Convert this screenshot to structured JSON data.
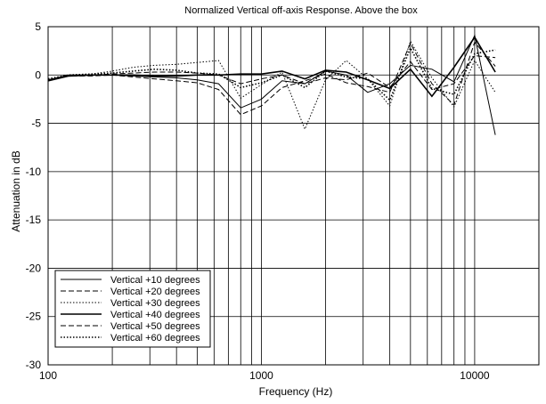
{
  "chart_data": {
    "type": "line",
    "title": "Normalized Vertical off-axis Response. Above the box",
    "xlabel": "Frequency (Hz)",
    "ylabel": "Attenuation in dB",
    "xscale": "log",
    "xlim": [
      100,
      20000
    ],
    "ylim": [
      -30,
      5
    ],
    "xticks": [
      100,
      1000,
      10000
    ],
    "xtick_labels": [
      "100",
      "1000",
      "10000"
    ],
    "yticks": [
      5,
      0,
      -5,
      -10,
      -15,
      -20,
      -25,
      -30
    ],
    "ytick_labels": [
      "5",
      "0",
      "-5",
      "-10",
      "-15",
      "-20",
      "-25",
      "-30"
    ],
    "grid": true,
    "legend_position": "bottom-left",
    "x": [
      100,
      125,
      160,
      200,
      250,
      315,
      400,
      500,
      630,
      800,
      1000,
      1250,
      1600,
      2000,
      2500,
      3150,
      4000,
      5000,
      6300,
      8000,
      10000,
      12500
    ],
    "series": [
      {
        "name": "Vertical +10 degrees",
        "style": "solid",
        "width": 1.0,
        "values": [
          -0.5,
          0.0,
          0.0,
          0.0,
          -0.1,
          -0.2,
          -0.3,
          -0.5,
          -0.9,
          -3.4,
          -2.5,
          -0.6,
          -0.9,
          0.4,
          0.0,
          -1.8,
          -0.9,
          1.0,
          0.6,
          -0.7,
          4.1,
          -6.2
        ]
      },
      {
        "name": "Vertical +20 degrees",
        "style": "dashed",
        "width": 1.0,
        "values": [
          -0.6,
          -0.1,
          -0.1,
          0.0,
          -0.2,
          -0.4,
          -0.6,
          -0.8,
          -1.5,
          -4.1,
          -3.2,
          -1.3,
          -0.6,
          0.1,
          -0.8,
          -1.2,
          -1.8,
          3.3,
          -0.9,
          -3.1,
          3.4,
          0.9
        ]
      },
      {
        "name": "Vertical +30 degrees",
        "style": "dotted",
        "width": 1.0,
        "values": [
          -0.5,
          0.0,
          0.1,
          0.4,
          0.8,
          1.0,
          1.1,
          1.3,
          1.5,
          -2.4,
          -1.0,
          0.3,
          -5.6,
          -0.5,
          1.5,
          -0.4,
          -3.2,
          3.5,
          -0.3,
          -3.3,
          1.5,
          -1.8
        ]
      },
      {
        "name": "Vertical +40 degrees",
        "style": "solid",
        "width": 1.6,
        "values": [
          -0.6,
          -0.1,
          0.0,
          0.0,
          0.0,
          -0.1,
          -0.1,
          0.0,
          0.0,
          0.1,
          0.1,
          0.4,
          -0.4,
          0.5,
          0.3,
          -0.5,
          -1.4,
          0.6,
          -2.2,
          0.8,
          3.9,
          0.3
        ]
      },
      {
        "name": "Vertical +50 degrees",
        "style": "dashed",
        "width": 1.0,
        "values": [
          -0.5,
          -0.1,
          0.0,
          0.1,
          0.2,
          0.3,
          0.3,
          0.2,
          0.0,
          -0.9,
          -0.4,
          0.0,
          -0.9,
          -0.3,
          -0.5,
          0.2,
          -1.3,
          1.4,
          -1.5,
          -0.9,
          2.0,
          1.8
        ]
      },
      {
        "name": "Vertical +60 degrees",
        "style": "dotted",
        "width": 1.6,
        "values": [
          -0.4,
          0.0,
          0.1,
          0.2,
          0.4,
          0.6,
          0.5,
          0.2,
          0.1,
          -1.3,
          -0.8,
          0.0,
          -1.3,
          0.4,
          -0.2,
          -0.4,
          -2.6,
          2.8,
          -1.4,
          -2.0,
          2.2,
          2.6
        ]
      }
    ]
  }
}
